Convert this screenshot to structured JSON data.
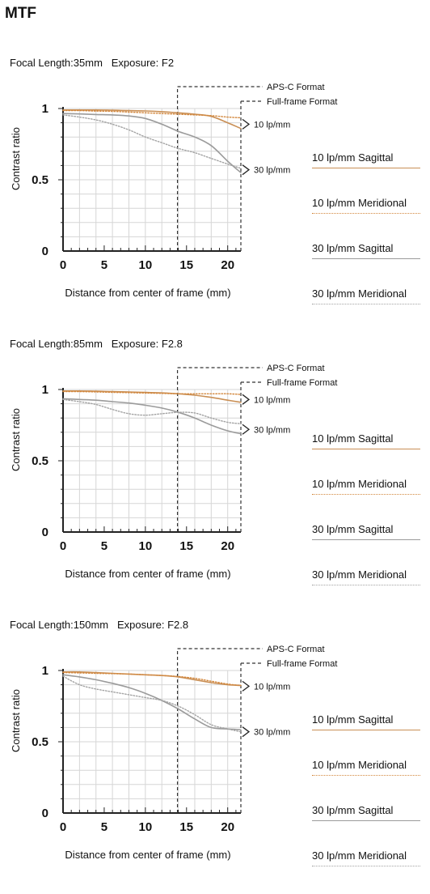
{
  "page": {
    "title": "MTF"
  },
  "colors": {
    "sagittal10": "#c98f55",
    "meridional10": "#d3883e",
    "sagittal30": "#9b9b9b",
    "meridional30": "#a3a3a3",
    "grid": "#d6d6d6",
    "axis": "#222222"
  },
  "legend": [
    {
      "label": "10 lp/mm Sagittal",
      "color": "#c98f55",
      "style": "solid"
    },
    {
      "label": "10 lp/mm Meridional",
      "color": "#d3883e",
      "style": "dotted"
    },
    {
      "label": "30 lp/mm Sagittal",
      "color": "#9b9b9b",
      "style": "solid"
    },
    {
      "label": "30 lp/mm Meridional",
      "color": "#a3a3a3",
      "style": "dotted"
    }
  ],
  "chart_data": [
    {
      "type": "line",
      "caption": "Focal Length:35mm   Exposure: F2",
      "xlabel": "Distance from center of frame (mm)",
      "ylabel": "Contrast ratio",
      "xlim": [
        0,
        21.6
      ],
      "ylim": [
        0,
        1
      ],
      "xticks": [
        "0",
        "5",
        "10",
        "15",
        "20"
      ],
      "yticks": [
        {
          "v": 0,
          "label": "0"
        },
        {
          "v": 0.5,
          "label": "0.5"
        },
        {
          "v": 1,
          "label": "1"
        }
      ],
      "markers": [
        {
          "x": 13.9,
          "label": "APS-C Format"
        },
        {
          "x": 21.6,
          "label": "Full-frame Format"
        }
      ],
      "curve_labels": [
        {
          "label": "10 lp/mm",
          "y": 0.89
        },
        {
          "label": "30 lp/mm",
          "y": 0.57
        }
      ],
      "series": [
        {
          "key": "s10",
          "x": [
            0,
            2,
            4,
            6,
            8,
            10,
            12,
            14,
            16,
            18,
            20,
            21.6
          ],
          "y": [
            0.99,
            0.99,
            0.99,
            0.988,
            0.985,
            0.983,
            0.978,
            0.97,
            0.96,
            0.945,
            0.9,
            0.86
          ]
        },
        {
          "key": "m10",
          "x": [
            0,
            2,
            4,
            6,
            8,
            10,
            12,
            14,
            16,
            18,
            20,
            21.6
          ],
          "y": [
            0.985,
            0.985,
            0.982,
            0.98,
            0.975,
            0.97,
            0.965,
            0.96,
            0.955,
            0.95,
            0.94,
            0.935
          ]
        },
        {
          "key": "s30",
          "x": [
            0,
            2,
            4,
            6,
            8,
            10,
            12,
            14,
            16,
            18,
            20,
            21.6
          ],
          "y": [
            0.965,
            0.962,
            0.958,
            0.955,
            0.948,
            0.93,
            0.89,
            0.84,
            0.8,
            0.74,
            0.63,
            0.55
          ]
        },
        {
          "key": "m30",
          "x": [
            0,
            2,
            4,
            6,
            8,
            10,
            12,
            14,
            16,
            18,
            20,
            21.6
          ],
          "y": [
            0.955,
            0.94,
            0.92,
            0.89,
            0.85,
            0.8,
            0.76,
            0.72,
            0.69,
            0.65,
            0.61,
            0.58
          ]
        }
      ]
    },
    {
      "type": "line",
      "caption": "Focal Length:85mm   Exposure: F2.8",
      "xlabel": "Distance from center of frame (mm)",
      "ylabel": "Contrast ratio",
      "xlim": [
        0,
        21.6
      ],
      "ylim": [
        0,
        1
      ],
      "xticks": [
        "0",
        "5",
        "10",
        "15",
        "20"
      ],
      "yticks": [
        {
          "v": 0,
          "label": "0"
        },
        {
          "v": 0.5,
          "label": "0.5"
        },
        {
          "v": 1,
          "label": "1"
        }
      ],
      "markers": [
        {
          "x": 13.9,
          "label": "APS-C Format"
        },
        {
          "x": 21.6,
          "label": "Full-frame Format"
        }
      ],
      "curve_labels": [
        {
          "label": "10 lp/mm",
          "y": 0.93
        },
        {
          "label": "30 lp/mm",
          "y": 0.72
        }
      ],
      "series": [
        {
          "key": "s10",
          "x": [
            0,
            2,
            4,
            6,
            8,
            10,
            12,
            14,
            16,
            18,
            20,
            21.6
          ],
          "y": [
            0.99,
            0.99,
            0.988,
            0.985,
            0.983,
            0.98,
            0.976,
            0.97,
            0.96,
            0.945,
            0.925,
            0.91
          ]
        },
        {
          "key": "m10",
          "x": [
            0,
            2,
            4,
            6,
            8,
            10,
            12,
            14,
            16,
            18,
            20,
            21.6
          ],
          "y": [
            0.985,
            0.985,
            0.983,
            0.98,
            0.978,
            0.975,
            0.973,
            0.97,
            0.97,
            0.97,
            0.97,
            0.965
          ]
        },
        {
          "key": "s30",
          "x": [
            0,
            2,
            4,
            6,
            8,
            10,
            12,
            14,
            16,
            18,
            20,
            21.6
          ],
          "y": [
            0.935,
            0.93,
            0.925,
            0.915,
            0.905,
            0.89,
            0.87,
            0.84,
            0.8,
            0.75,
            0.71,
            0.69
          ]
        },
        {
          "key": "m30",
          "x": [
            0,
            2,
            4,
            6,
            8,
            10,
            12,
            14,
            16,
            18,
            20,
            21.6
          ],
          "y": [
            0.93,
            0.915,
            0.895,
            0.86,
            0.83,
            0.82,
            0.83,
            0.84,
            0.835,
            0.8,
            0.77,
            0.76
          ]
        }
      ]
    },
    {
      "type": "line",
      "caption": "Focal Length:150mm   Exposure: F2.8",
      "xlabel": "Distance from center of frame (mm)",
      "ylabel": "Contrast ratio",
      "xlim": [
        0,
        21.6
      ],
      "ylim": [
        0,
        1
      ],
      "xticks": [
        "0",
        "5",
        "10",
        "15",
        "20"
      ],
      "yticks": [
        {
          "v": 0,
          "label": "0"
        },
        {
          "v": 0.5,
          "label": "0.5"
        },
        {
          "v": 1,
          "label": "1"
        }
      ],
      "markers": [
        {
          "x": 13.9,
          "label": "APS-C Format"
        },
        {
          "x": 21.6,
          "label": "Full-frame Format"
        }
      ],
      "curve_labels": [
        {
          "label": "10 lp/mm",
          "y": 0.89
        },
        {
          "label": "30 lp/mm",
          "y": 0.57
        }
      ],
      "series": [
        {
          "key": "s10",
          "x": [
            0,
            2,
            4,
            6,
            8,
            10,
            12,
            14,
            16,
            18,
            20,
            21.6
          ],
          "y": [
            0.99,
            0.99,
            0.985,
            0.98,
            0.975,
            0.97,
            0.965,
            0.955,
            0.935,
            0.915,
            0.9,
            0.895
          ]
        },
        {
          "key": "m10",
          "x": [
            0,
            2,
            4,
            6,
            8,
            10,
            12,
            14,
            16,
            18,
            20,
            21.6
          ],
          "y": [
            0.985,
            0.983,
            0.98,
            0.978,
            0.975,
            0.97,
            0.965,
            0.958,
            0.945,
            0.925,
            0.905,
            0.895
          ]
        },
        {
          "key": "s30",
          "x": [
            0,
            2,
            4,
            6,
            8,
            10,
            12,
            14,
            16,
            18,
            20,
            21.6
          ],
          "y": [
            0.97,
            0.955,
            0.935,
            0.91,
            0.88,
            0.84,
            0.79,
            0.73,
            0.66,
            0.6,
            0.59,
            0.585
          ]
        },
        {
          "key": "m30",
          "x": [
            0,
            2,
            4,
            6,
            8,
            10,
            12,
            14,
            16,
            18,
            20,
            21.6
          ],
          "y": [
            0.96,
            0.9,
            0.87,
            0.85,
            0.83,
            0.81,
            0.79,
            0.75,
            0.69,
            0.62,
            0.59,
            0.57
          ]
        }
      ]
    }
  ]
}
